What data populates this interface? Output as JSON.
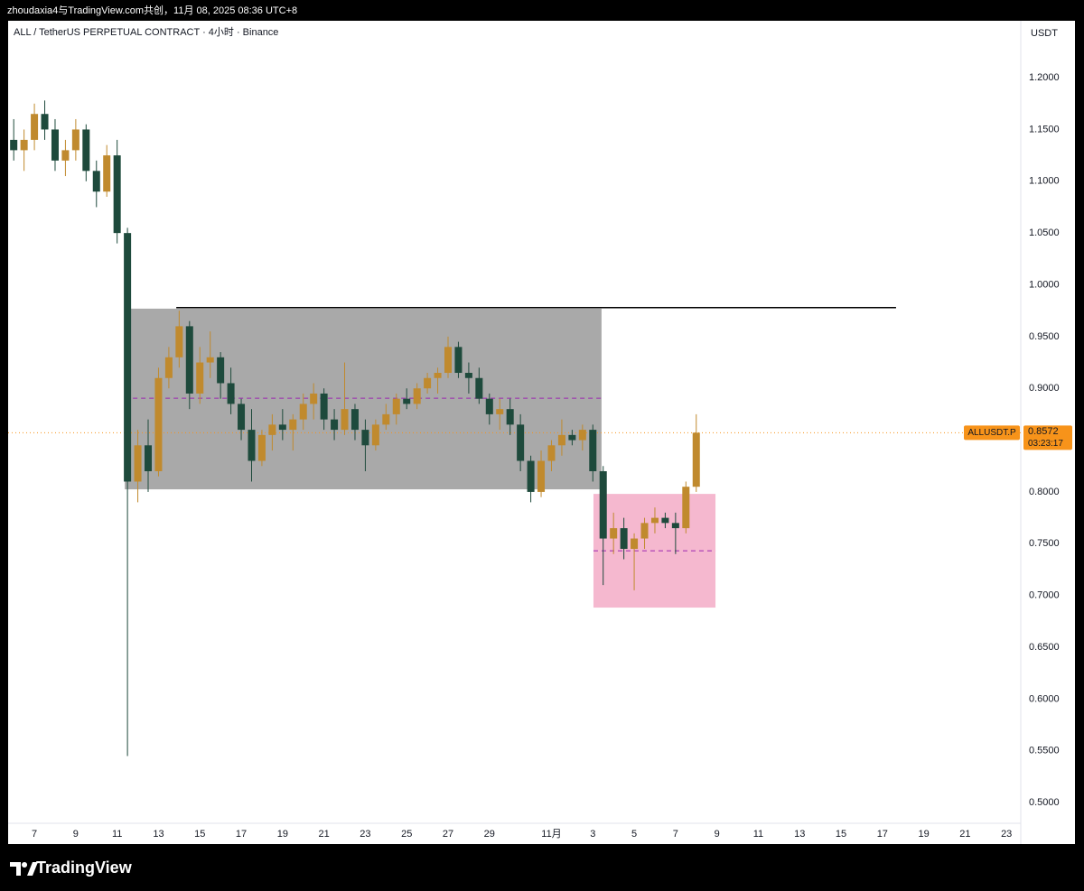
{
  "header": {
    "attribution": "zhoudaxia4与TradingView.com共创，11月 08, 2025 08:36 UTC+8",
    "brand": "TradingView"
  },
  "chart_data": {
    "type": "candlestick",
    "title": "ALL / TetherUS PERPETUAL CONTRACT · 4小时 · Binance",
    "y_unit": "USDT",
    "up_color": "#c08a2e",
    "down_color": "#1e4a3c",
    "x": [
      6.0,
      6.5,
      7.0,
      7.5,
      8.0,
      8.5,
      9.0,
      9.5,
      10.0,
      10.5,
      11.0,
      11.5,
      12.0,
      12.5,
      13.0,
      13.5,
      14.0,
      14.5,
      15.0,
      15.5,
      16.0,
      16.5,
      17.0,
      17.5,
      18.0,
      18.5,
      19.0,
      19.5,
      20.0,
      20.5,
      21.0,
      21.5,
      22.0,
      22.5,
      23.0,
      23.5,
      24.0,
      24.5,
      25.0,
      25.5,
      26.0,
      26.5,
      27.0,
      27.5,
      28.0,
      28.5,
      29.0,
      29.5,
      30.0,
      30.5,
      31.0,
      31.5,
      32.0,
      32.5,
      33.0,
      33.5,
      34.0,
      34.5,
      35.0,
      35.5,
      36.0,
      36.5,
      37.0,
      37.5,
      38.0,
      38.5,
      39.0
    ],
    "ohlc": [
      [
        1.14,
        1.16,
        1.12,
        1.13
      ],
      [
        1.13,
        1.15,
        1.11,
        1.14
      ],
      [
        1.14,
        1.175,
        1.13,
        1.165
      ],
      [
        1.165,
        1.178,
        1.14,
        1.15
      ],
      [
        1.15,
        1.16,
        1.11,
        1.12
      ],
      [
        1.12,
        1.14,
        1.105,
        1.13
      ],
      [
        1.13,
        1.16,
        1.12,
        1.15
      ],
      [
        1.15,
        1.155,
        1.1,
        1.11
      ],
      [
        1.11,
        1.12,
        1.075,
        1.09
      ],
      [
        1.09,
        1.135,
        1.085,
        1.125
      ],
      [
        1.125,
        1.14,
        1.04,
        1.05
      ],
      [
        1.05,
        1.055,
        0.545,
        0.81
      ],
      [
        0.81,
        0.86,
        0.79,
        0.845
      ],
      [
        0.845,
        0.87,
        0.8,
        0.82
      ],
      [
        0.82,
        0.92,
        0.815,
        0.91
      ],
      [
        0.91,
        0.94,
        0.9,
        0.93
      ],
      [
        0.93,
        0.975,
        0.92,
        0.96
      ],
      [
        0.96,
        0.965,
        0.88,
        0.895
      ],
      [
        0.895,
        0.94,
        0.885,
        0.925
      ],
      [
        0.925,
        0.955,
        0.91,
        0.93
      ],
      [
        0.93,
        0.935,
        0.89,
        0.905
      ],
      [
        0.905,
        0.92,
        0.875,
        0.885
      ],
      [
        0.885,
        0.89,
        0.85,
        0.86
      ],
      [
        0.86,
        0.88,
        0.81,
        0.83
      ],
      [
        0.83,
        0.86,
        0.825,
        0.855
      ],
      [
        0.855,
        0.875,
        0.84,
        0.865
      ],
      [
        0.865,
        0.88,
        0.85,
        0.86
      ],
      [
        0.86,
        0.875,
        0.84,
        0.87
      ],
      [
        0.87,
        0.895,
        0.86,
        0.885
      ],
      [
        0.885,
        0.905,
        0.87,
        0.895
      ],
      [
        0.895,
        0.9,
        0.86,
        0.87
      ],
      [
        0.87,
        0.88,
        0.85,
        0.86
      ],
      [
        0.86,
        0.925,
        0.855,
        0.88
      ],
      [
        0.88,
        0.885,
        0.85,
        0.86
      ],
      [
        0.86,
        0.87,
        0.82,
        0.845
      ],
      [
        0.845,
        0.87,
        0.84,
        0.865
      ],
      [
        0.865,
        0.885,
        0.86,
        0.875
      ],
      [
        0.875,
        0.895,
        0.865,
        0.89
      ],
      [
        0.89,
        0.9,
        0.88,
        0.885
      ],
      [
        0.885,
        0.905,
        0.88,
        0.9
      ],
      [
        0.9,
        0.915,
        0.895,
        0.91
      ],
      [
        0.91,
        0.92,
        0.895,
        0.915
      ],
      [
        0.915,
        0.95,
        0.91,
        0.94
      ],
      [
        0.94,
        0.945,
        0.91,
        0.915
      ],
      [
        0.915,
        0.925,
        0.895,
        0.91
      ],
      [
        0.91,
        0.92,
        0.885,
        0.89
      ],
      [
        0.89,
        0.895,
        0.865,
        0.875
      ],
      [
        0.875,
        0.89,
        0.86,
        0.88
      ],
      [
        0.88,
        0.89,
        0.855,
        0.865
      ],
      [
        0.865,
        0.875,
        0.82,
        0.83
      ],
      [
        0.83,
        0.835,
        0.79,
        0.8
      ],
      [
        0.8,
        0.84,
        0.795,
        0.83
      ],
      [
        0.83,
        0.85,
        0.82,
        0.845
      ],
      [
        0.845,
        0.87,
        0.835,
        0.855
      ],
      [
        0.855,
        0.86,
        0.845,
        0.85
      ],
      [
        0.85,
        0.865,
        0.84,
        0.86
      ],
      [
        0.86,
        0.865,
        0.81,
        0.82
      ],
      [
        0.82,
        0.825,
        0.71,
        0.755
      ],
      [
        0.755,
        0.78,
        0.74,
        0.765
      ],
      [
        0.765,
        0.775,
        0.735,
        0.745
      ],
      [
        0.745,
        0.76,
        0.705,
        0.755
      ],
      [
        0.755,
        0.775,
        0.745,
        0.77
      ],
      [
        0.77,
        0.785,
        0.76,
        0.775
      ],
      [
        0.775,
        0.78,
        0.765,
        0.77
      ],
      [
        0.77,
        0.78,
        0.74,
        0.765
      ],
      [
        0.765,
        0.81,
        0.76,
        0.805
      ],
      [
        0.805,
        0.875,
        0.8,
        0.8572
      ]
    ],
    "xlim": [
      5.73,
      54.69
    ],
    "xticks": [
      7,
      9,
      11,
      13,
      15,
      17,
      19,
      21,
      23,
      25,
      27,
      29,
      {
        "value": 32,
        "label": "11月"
      },
      {
        "value": 34,
        "label": "3"
      },
      {
        "value": 36,
        "label": "5"
      },
      {
        "value": 38,
        "label": "7"
      },
      {
        "value": 40,
        "label": "9"
      },
      {
        "value": 42,
        "label": "11"
      },
      {
        "value": 44,
        "label": "13"
      },
      {
        "value": 46,
        "label": "15"
      },
      {
        "value": 48,
        "label": "17"
      },
      {
        "value": 50,
        "label": "19"
      },
      {
        "value": 52,
        "label": "21"
      },
      {
        "value": 54,
        "label": "23"
      }
    ],
    "ylim": [
      0.48,
      1.255
    ],
    "yticks": [
      {
        "value": 0.5,
        "label": "0.5000"
      },
      {
        "value": 0.55,
        "label": "0.5500"
      },
      {
        "value": 0.6,
        "label": "0.6000"
      },
      {
        "value": 0.65,
        "label": "0.6500"
      },
      {
        "value": 0.7,
        "label": "0.7000"
      },
      {
        "value": 0.75,
        "label": "0.7500"
      },
      {
        "value": 0.8,
        "label": "0.8000"
      },
      {
        "value": 0.85,
        "label": "0.8500"
      },
      {
        "value": 0.9,
        "label": "0.9000"
      },
      {
        "value": 0.95,
        "label": "0.9500"
      },
      {
        "value": 1.0,
        "label": "1.0000"
      },
      {
        "value": 1.05,
        "label": "1.0500"
      },
      {
        "value": 1.1,
        "label": "1.1000"
      },
      {
        "value": 1.15,
        "label": "1.1500"
      },
      {
        "value": 1.2,
        "label": "1.2000"
      }
    ],
    "grid": false,
    "drawings": {
      "range_box": {
        "x": [
          11.37,
          34.42
        ],
        "y": [
          0.8025,
          0.977
        ],
        "mid": 0.8905,
        "color": "#a9a9a9"
      },
      "demand_box": {
        "x": [
          34.03,
          39.93
        ],
        "y": [
          0.6883,
          0.7981
        ],
        "mid": 0.7432,
        "color": "#f5b8cf"
      },
      "resistance_line": {
        "x": [
          13.86,
          48.66
        ],
        "y": 0.978,
        "color": "#000000"
      }
    },
    "last_price": {
      "symbol": "ALLUSDT.P",
      "value": 0.8572,
      "countdown": "03:23:17",
      "color": "#f7931a"
    }
  }
}
